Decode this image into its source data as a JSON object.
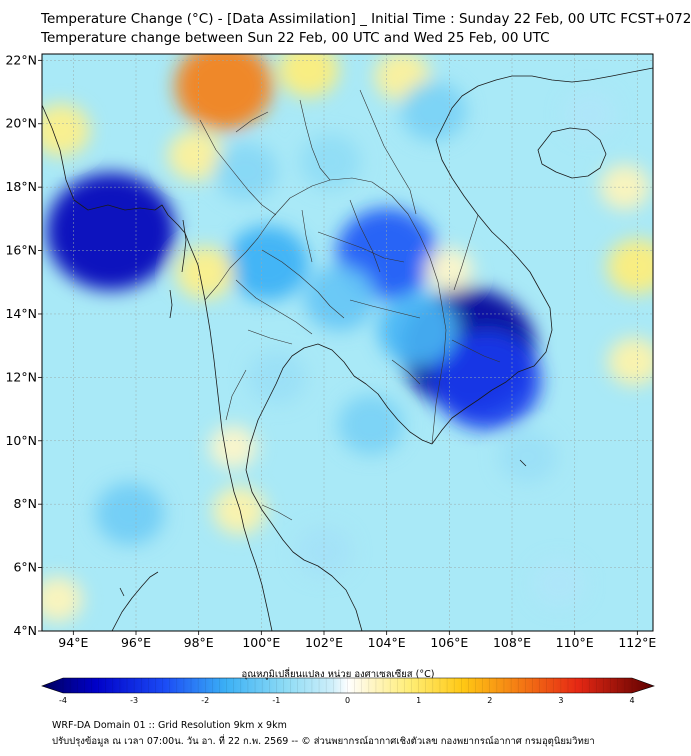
{
  "header": {
    "title_line1": "Temperature Change (°C) - [Data Assimilation] _ Initial Time : Sunday 22 Feb, 00 UTC FCST+072",
    "title_line2": "Temperature change between Sun 22 Feb, 00 UTC and Wed 25 Feb, 00 UTC"
  },
  "map": {
    "lon_range": [
      93,
      112.5
    ],
    "lat_range": [
      4,
      22.2
    ],
    "lat_ticks": [
      4,
      6,
      8,
      10,
      12,
      14,
      16,
      18,
      20,
      22
    ],
    "lat_labels": [
      "4°N",
      "6°N",
      "8°N",
      "10°N",
      "12°N",
      "14°N",
      "16°N",
      "18°N",
      "20°N",
      "22°N"
    ],
    "lon_ticks": [
      94,
      96,
      98,
      100,
      102,
      104,
      106,
      108,
      110,
      112
    ],
    "lon_labels": [
      "94°E",
      "96°E",
      "98°E",
      "100°E",
      "102°E",
      "104°E",
      "106°E",
      "108°E",
      "110°E",
      "112°E"
    ],
    "gridlines": true,
    "base_color": "#a9e9f7",
    "anomalies": [
      {
        "lon": 95.2,
        "lat": 16.6,
        "value": -3.4
      },
      {
        "lon": 106.6,
        "lat": 12.9,
        "value": -3.6
      },
      {
        "lon": 107.2,
        "lat": 11.9,
        "value": -2.6
      },
      {
        "lon": 104.0,
        "lat": 15.9,
        "value": -2.3
      },
      {
        "lon": 100.2,
        "lat": 15.6,
        "value": -1.6
      },
      {
        "lon": 102.5,
        "lat": 14.5,
        "value": -1.2
      },
      {
        "lon": 105.0,
        "lat": 13.5,
        "value": -1.5
      },
      {
        "lon": 98.8,
        "lat": 21.2,
        "value": 2.2
      },
      {
        "lon": 101.5,
        "lat": 21.7,
        "value": 0.8
      },
      {
        "lon": 104.5,
        "lat": 21.5,
        "value": 0.6
      },
      {
        "lon": 93.6,
        "lat": 19.8,
        "value": 0.7
      },
      {
        "lon": 97.9,
        "lat": 19.0,
        "value": 0.6
      },
      {
        "lon": 98.2,
        "lat": 15.3,
        "value": 0.7
      },
      {
        "lon": 112.0,
        "lat": 15.5,
        "value": 0.8
      },
      {
        "lon": 111.9,
        "lat": 12.5,
        "value": 0.5
      },
      {
        "lon": 111.6,
        "lat": 18.0,
        "value": 0.4
      },
      {
        "lon": 99.3,
        "lat": 7.8,
        "value": 0.5
      },
      {
        "lon": 99.1,
        "lat": 9.8,
        "value": 0.3
      },
      {
        "lon": 93.5,
        "lat": 5.0,
        "value": 0.4
      },
      {
        "lon": 106.0,
        "lat": 15.4,
        "value": 0.3
      },
      {
        "lon": 102.2,
        "lat": 18.8,
        "value": -0.8
      },
      {
        "lon": 99.5,
        "lat": 18.5,
        "value": -0.9
      },
      {
        "lon": 105.5,
        "lat": 20.4,
        "value": -1.0
      },
      {
        "lon": 103.5,
        "lat": 10.5,
        "value": -1.0
      },
      {
        "lon": 95.8,
        "lat": 7.7,
        "value": -1.1
      },
      {
        "lon": 108.5,
        "lat": 9.5,
        "value": -0.7
      },
      {
        "lon": 102.0,
        "lat": 6.5,
        "value": -0.6
      },
      {
        "lon": 109.5,
        "lat": 5.5,
        "value": -0.5
      },
      {
        "lon": 110.5,
        "lat": 20.3,
        "value": -0.5
      },
      {
        "lon": 100.5,
        "lat": 12.0,
        "value": -0.7
      }
    ]
  },
  "colorbar": {
    "title": "อุณหภูมิเปลี่ยนแปลง หน่วย องศาเซลเซียส (°C)",
    "min": -4,
    "max": 4,
    "ticks": [
      -4,
      -3,
      -2,
      -1,
      0,
      1,
      2,
      3,
      4
    ],
    "tick_labels": [
      "-4",
      "-3",
      "-2",
      "-1",
      "0",
      "1",
      "2",
      "3",
      "4"
    ],
    "stops": [
      {
        "v": -4,
        "color": "#00005c"
      },
      {
        "v": -3.3,
        "color": "#0000c8"
      },
      {
        "v": -2.4,
        "color": "#1b4bf5"
      },
      {
        "v": -1.6,
        "color": "#3bb0f5"
      },
      {
        "v": -0.8,
        "color": "#8fdcf5"
      },
      {
        "v": -0.2,
        "color": "#cfeffa"
      },
      {
        "v": 0,
        "color": "#ffffff"
      },
      {
        "v": 0.3,
        "color": "#fff6c8"
      },
      {
        "v": 0.8,
        "color": "#ffee77"
      },
      {
        "v": 1.5,
        "color": "#ffc814"
      },
      {
        "v": 2.2,
        "color": "#f57f14"
      },
      {
        "v": 3.0,
        "color": "#e62814"
      },
      {
        "v": 4,
        "color": "#5c0000"
      }
    ]
  },
  "footer": {
    "line1": "WRF-DA Domain 01 :: Grid Resolution 9km x 9km",
    "line2": "ปรับปรุงข้อมูล ณ เวลา 07:00น. วัน อา. ที่ 22 ก.พ. 2569 -- © ส่วนพยากรณ์อากาศเชิงตัวเลข กองพยากรณ์อากาศ กรมอุตุนิยมวิทยา"
  }
}
